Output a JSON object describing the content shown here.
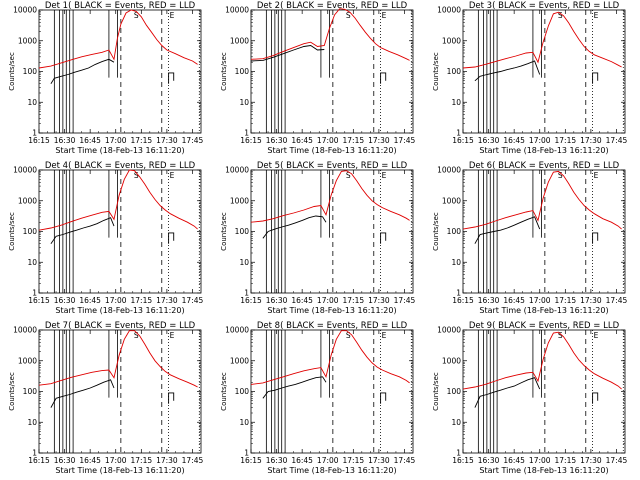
{
  "figure": {
    "background": "#ffffff",
    "axis_color": "#000000"
  },
  "chart_data": [
    {
      "type": "line",
      "title": "Det 1(  BLACK = Events, RED = LLD",
      "xlabel": "Start Time (18-Feb-13 16:11:20)",
      "ylabel": "Counts/sec",
      "yscale": "log",
      "ylim": [
        1,
        10000
      ],
      "xlim": [
        "16:15",
        "17:50"
      ],
      "x_ticks": [
        "16:15",
        "16:30",
        "16:45",
        "17:00",
        "17:15",
        "17:30",
        "17:45"
      ],
      "y_ticks": [
        "1",
        "10",
        "100",
        "1000",
        "10000"
      ],
      "annotations": [
        "S",
        "E"
      ],
      "series": [
        {
          "color": "#000000",
          "x": [
            "16:22",
            "16:24",
            "16:28",
            "16:32",
            "16:36",
            "16:40",
            "16:44",
            "16:48",
            "16:52",
            "16:56",
            "16:59"
          ],
          "y": [
            40,
            60,
            70,
            80,
            95,
            110,
            130,
            170,
            210,
            250,
            200
          ]
        },
        {
          "color": "#e00000",
          "x": [
            "16:15",
            "16:22",
            "16:28",
            "16:34",
            "16:40",
            "16:46",
            "16:52",
            "16:56",
            "16:59",
            "17:01",
            "17:03",
            "17:06",
            "17:09",
            "17:12",
            "17:15",
            "17:18",
            "17:21",
            "17:24",
            "17:27",
            "17:30",
            "17:35",
            "17:40",
            "17:45",
            "17:48"
          ],
          "y": [
            130,
            150,
            190,
            240,
            300,
            360,
            420,
            500,
            250,
            1200,
            3500,
            8000,
            10000,
            9000,
            6000,
            3200,
            1900,
            1100,
            700,
            500,
            380,
            280,
            220,
            170
          ]
        }
      ]
    },
    {
      "type": "line",
      "title": "Det 2(  BLACK = Events, RED = LLD",
      "xlabel": "Start Time (18-Feb-13 16:11:20)",
      "ylabel": "Counts/sec",
      "yscale": "log",
      "ylim": [
        1,
        10000
      ],
      "xlim": [
        "16:15",
        "17:50"
      ],
      "x_ticks": [
        "16:15",
        "16:30",
        "16:45",
        "17:00",
        "17:15",
        "17:30",
        "17:45"
      ],
      "y_ticks": [
        "1",
        "10",
        "100",
        "1000",
        "10000"
      ],
      "annotations": [
        "S",
        "E"
      ],
      "series": [
        {
          "color": "#000000",
          "x": [
            "16:15",
            "16:22",
            "16:28",
            "16:34",
            "16:40",
            "16:46",
            "16:50",
            "16:54",
            "16:58"
          ],
          "y": [
            220,
            230,
            290,
            380,
            500,
            650,
            700,
            500,
            520
          ]
        },
        {
          "color": "#e00000",
          "x": [
            "16:15",
            "16:22",
            "16:28",
            "16:34",
            "16:40",
            "16:46",
            "16:50",
            "16:54",
            "16:58",
            "17:01",
            "17:04",
            "17:07",
            "17:10",
            "17:13",
            "17:16",
            "17:19",
            "17:22",
            "17:25",
            "17:28",
            "17:31",
            "17:36",
            "17:41",
            "17:46",
            "17:48"
          ],
          "y": [
            250,
            260,
            330,
            450,
            600,
            800,
            900,
            650,
            700,
            2500,
            7000,
            11000,
            10500,
            8500,
            5500,
            3200,
            1900,
            1200,
            800,
            600,
            450,
            350,
            260,
            230
          ]
        }
      ]
    },
    {
      "type": "line",
      "title": "Det 3(  BLACK = Events, RED = LLD",
      "xlabel": "Start Time (18-Feb-13 16:11:20)",
      "ylabel": "Counts/sec",
      "yscale": "log",
      "ylim": [
        1,
        10000
      ],
      "xlim": [
        "16:15",
        "17:50"
      ],
      "x_ticks": [
        "16:15",
        "16:30",
        "16:45",
        "17:00",
        "17:15",
        "17:30",
        "17:45"
      ],
      "y_ticks": [
        "1",
        "10",
        "100",
        "1000",
        "10000"
      ],
      "annotations": [
        "S",
        "E"
      ],
      "series": [
        {
          "color": "#000000",
          "x": [
            "16:22",
            "16:25",
            "16:29",
            "16:33",
            "16:37",
            "16:41",
            "16:45",
            "16:49",
            "16:53",
            "16:57",
            "17:00"
          ],
          "y": [
            50,
            70,
            80,
            90,
            100,
            115,
            130,
            150,
            180,
            220,
            80
          ]
        },
        {
          "color": "#e00000",
          "x": [
            "16:15",
            "16:22",
            "16:28",
            "16:34",
            "16:40",
            "16:46",
            "16:52",
            "16:56",
            "16:59",
            "17:02",
            "17:05",
            "17:08",
            "17:11",
            "17:14",
            "17:17",
            "17:20",
            "17:23",
            "17:26",
            "17:29",
            "17:32",
            "17:37",
            "17:42",
            "17:46",
            "17:48"
          ],
          "y": [
            130,
            140,
            170,
            210,
            260,
            320,
            400,
            420,
            200,
            900,
            3000,
            7500,
            8500,
            6500,
            3800,
            2000,
            1100,
            650,
            450,
            350,
            270,
            210,
            160,
            140
          ]
        }
      ]
    },
    {
      "type": "line",
      "title": "Det 4(  BLACK = Events, RED = LLD",
      "xlabel": "Start Time (18-Feb-13 16:11:20)",
      "ylabel": "Counts/sec",
      "yscale": "log",
      "ylim": [
        1,
        10000
      ],
      "xlim": [
        "16:15",
        "17:50"
      ],
      "x_ticks": [
        "16:15",
        "16:30",
        "16:45",
        "17:00",
        "17:15",
        "17:30",
        "17:45"
      ],
      "y_ticks": [
        "1",
        "10",
        "100",
        "1000",
        "10000"
      ],
      "annotations": [
        "S",
        "E"
      ],
      "series": [
        {
          "color": "#000000",
          "x": [
            "16:22",
            "16:25",
            "16:29",
            "16:33",
            "16:37",
            "16:41",
            "16:45",
            "16:49",
            "16:53",
            "16:57",
            "16:59"
          ],
          "y": [
            40,
            70,
            80,
            95,
            110,
            130,
            150,
            180,
            230,
            280,
            150
          ]
        },
        {
          "color": "#e00000",
          "x": [
            "16:15",
            "16:22",
            "16:28",
            "16:34",
            "16:40",
            "16:46",
            "16:52",
            "16:56",
            "16:59",
            "17:02",
            "17:05",
            "17:08",
            "17:11",
            "17:14",
            "17:17",
            "17:20",
            "17:23",
            "17:26",
            "17:29",
            "17:32",
            "17:37",
            "17:42",
            "17:46",
            "17:48"
          ],
          "y": [
            110,
            130,
            160,
            210,
            270,
            340,
            420,
            450,
            250,
            1500,
            5000,
            10000,
            9500,
            6000,
            3500,
            1900,
            1100,
            700,
            500,
            380,
            270,
            200,
            150,
            120
          ]
        }
      ]
    },
    {
      "type": "line",
      "title": "Det 5(  BLACK = Events, RED = LLD",
      "xlabel": "Start Time (18-Feb-13 16:11:20)",
      "ylabel": "Counts/sec",
      "yscale": "log",
      "ylim": [
        1,
        10000
      ],
      "xlim": [
        "16:15",
        "17:50"
      ],
      "x_ticks": [
        "16:15",
        "16:30",
        "16:45",
        "17:00",
        "17:15",
        "17:30",
        "17:45"
      ],
      "y_ticks": [
        "1",
        "10",
        "100",
        "1000",
        "10000"
      ],
      "annotations": [
        "S",
        "E"
      ],
      "series": [
        {
          "color": "#000000",
          "x": [
            "16:22",
            "16:25",
            "16:29",
            "16:33",
            "16:37",
            "16:41",
            "16:45",
            "16:49",
            "16:53",
            "16:57",
            "16:59"
          ],
          "y": [
            60,
            100,
            120,
            140,
            160,
            190,
            230,
            280,
            320,
            300,
            200
          ]
        },
        {
          "color": "#e00000",
          "x": [
            "16:15",
            "16:22",
            "16:28",
            "16:34",
            "16:40",
            "16:46",
            "16:52",
            "16:56",
            "16:59",
            "17:02",
            "17:05",
            "17:08",
            "17:11",
            "17:14",
            "17:17",
            "17:20",
            "17:23",
            "17:26",
            "17:29",
            "17:32",
            "17:37",
            "17:42",
            "17:46",
            "17:48"
          ],
          "y": [
            200,
            220,
            260,
            330,
            400,
            500,
            650,
            700,
            350,
            1500,
            4500,
            9000,
            9500,
            7500,
            4500,
            2500,
            1500,
            1000,
            750,
            600,
            450,
            350,
            270,
            230
          ]
        }
      ]
    },
    {
      "type": "line",
      "title": "Det 6(  BLACK = Events, RED = LLD",
      "xlabel": "Start Time (18-Feb-13 16:11:20)",
      "ylabel": "Counts/sec",
      "yscale": "log",
      "ylim": [
        1,
        10000
      ],
      "xlim": [
        "16:15",
        "17:50"
      ],
      "x_ticks": [
        "16:15",
        "16:30",
        "16:45",
        "17:00",
        "17:15",
        "17:30",
        "17:45"
      ],
      "y_ticks": [
        "1",
        "10",
        "100",
        "1000",
        "10000"
      ],
      "annotations": [
        "S",
        "E"
      ],
      "series": [
        {
          "color": "#000000",
          "x": [
            "16:22",
            "16:25",
            "16:29",
            "16:33",
            "16:37",
            "16:41",
            "16:45",
            "16:49",
            "16:53",
            "16:57",
            "17:00"
          ],
          "y": [
            40,
            80,
            90,
            100,
            110,
            130,
            160,
            200,
            250,
            300,
            120
          ]
        },
        {
          "color": "#e00000",
          "x": [
            "16:15",
            "16:22",
            "16:28",
            "16:34",
            "16:40",
            "16:46",
            "16:52",
            "16:56",
            "16:59",
            "17:02",
            "17:05",
            "17:08",
            "17:11",
            "17:14",
            "17:17",
            "17:20",
            "17:23",
            "17:26",
            "17:29",
            "17:32",
            "17:37",
            "17:42",
            "17:46",
            "17:48"
          ],
          "y": [
            120,
            140,
            170,
            220,
            280,
            350,
            430,
            480,
            230,
            1200,
            4000,
            8500,
            9000,
            6500,
            3600,
            1900,
            1100,
            700,
            500,
            380,
            260,
            200,
            150,
            120
          ]
        }
      ]
    },
    {
      "type": "line",
      "title": "Det 7(  BLACK = Events, RED = LLD",
      "xlabel": "Start Time (18-Feb-13 16:11:20)",
      "ylabel": "Counts/sec",
      "yscale": "log",
      "ylim": [
        1,
        10000
      ],
      "xlim": [
        "16:15",
        "17:50"
      ],
      "x_ticks": [
        "16:15",
        "16:30",
        "16:45",
        "17:00",
        "17:15",
        "17:30",
        "17:45"
      ],
      "y_ticks": [
        "1",
        "10",
        "100",
        "1000",
        "10000"
      ],
      "annotations": [
        "S",
        "E"
      ],
      "series": [
        {
          "color": "#000000",
          "x": [
            "16:22",
            "16:25",
            "16:29",
            "16:33",
            "16:37",
            "16:41",
            "16:45",
            "16:49",
            "16:53",
            "16:57",
            "16:59"
          ],
          "y": [
            30,
            60,
            70,
            80,
            95,
            110,
            130,
            160,
            200,
            240,
            130
          ]
        },
        {
          "color": "#e00000",
          "x": [
            "16:15",
            "16:22",
            "16:28",
            "16:34",
            "16:40",
            "16:46",
            "16:52",
            "16:56",
            "16:59",
            "17:02",
            "17:05",
            "17:08",
            "17:11",
            "17:14",
            "17:17",
            "17:20",
            "17:23",
            "17:26",
            "17:29",
            "17:32",
            "17:37",
            "17:42",
            "17:46",
            "17:48"
          ],
          "y": [
            160,
            180,
            230,
            290,
            350,
            420,
            480,
            500,
            280,
            1500,
            5000,
            9500,
            9500,
            6500,
            3500,
            1800,
            1000,
            650,
            450,
            350,
            260,
            200,
            160,
            140
          ]
        }
      ]
    },
    {
      "type": "line",
      "title": "Det 8(  BLACK = Events, RED = LLD",
      "xlabel": "Start Time (18-Feb-13 16:11:20)",
      "ylabel": "Counts/sec",
      "yscale": "log",
      "ylim": [
        1,
        10000
      ],
      "xlim": [
        "16:15",
        "17:50"
      ],
      "x_ticks": [
        "16:15",
        "16:30",
        "16:45",
        "17:00",
        "17:15",
        "17:30",
        "17:45"
      ],
      "y_ticks": [
        "1",
        "10",
        "100",
        "1000",
        "10000"
      ],
      "annotations": [
        "S",
        "E"
      ],
      "series": [
        {
          "color": "#000000",
          "x": [
            "16:22",
            "16:25",
            "16:29",
            "16:33",
            "16:37",
            "16:41",
            "16:45",
            "16:49",
            "16:53",
            "16:57",
            "16:59"
          ],
          "y": [
            60,
            100,
            110,
            130,
            150,
            170,
            200,
            240,
            280,
            300,
            200
          ]
        },
        {
          "color": "#e00000",
          "x": [
            "16:15",
            "16:22",
            "16:28",
            "16:34",
            "16:40",
            "16:46",
            "16:52",
            "16:56",
            "16:59",
            "17:02",
            "17:05",
            "17:08",
            "17:11",
            "17:14",
            "17:17",
            "17:20",
            "17:23",
            "17:26",
            "17:29",
            "17:32",
            "17:37",
            "17:42",
            "17:46",
            "17:48"
          ],
          "y": [
            170,
            190,
            240,
            300,
            380,
            470,
            550,
            600,
            300,
            1500,
            5000,
            9500,
            9500,
            7000,
            4000,
            2200,
            1300,
            850,
            620,
            500,
            380,
            300,
            230,
            190
          ]
        }
      ]
    },
    {
      "type": "line",
      "title": "Det 9(  BLACK = Events, RED = LLD",
      "xlabel": "Start Time (18-Feb-13 16:11:20)",
      "ylabel": "Counts/sec",
      "yscale": "log",
      "ylim": [
        1,
        10000
      ],
      "xlim": [
        "16:15",
        "17:50"
      ],
      "x_ticks": [
        "16:15",
        "16:30",
        "16:45",
        "17:00",
        "17:15",
        "17:30",
        "17:45"
      ],
      "y_ticks": [
        "1",
        "10",
        "100",
        "1000",
        "10000"
      ],
      "annotations": [
        "S",
        "E"
      ],
      "series": [
        {
          "color": "#000000",
          "x": [
            "16:22",
            "16:25",
            "16:29",
            "16:33",
            "16:37",
            "16:41",
            "16:45",
            "16:49",
            "16:53",
            "16:57",
            "17:00"
          ],
          "y": [
            30,
            70,
            80,
            95,
            110,
            130,
            150,
            190,
            240,
            280,
            120
          ]
        },
        {
          "color": "#e00000",
          "x": [
            "16:15",
            "16:22",
            "16:28",
            "16:34",
            "16:40",
            "16:46",
            "16:52",
            "16:56",
            "16:59",
            "17:02",
            "17:05",
            "17:08",
            "17:11",
            "17:14",
            "17:17",
            "17:20",
            "17:23",
            "17:26",
            "17:29",
            "17:32",
            "17:37",
            "17:42",
            "17:46",
            "17:48"
          ],
          "y": [
            120,
            140,
            170,
            220,
            280,
            340,
            400,
            420,
            220,
            1100,
            3800,
            8000,
            8500,
            6000,
            3400,
            1800,
            1050,
            700,
            500,
            380,
            270,
            200,
            150,
            120
          ]
        }
      ]
    }
  ]
}
